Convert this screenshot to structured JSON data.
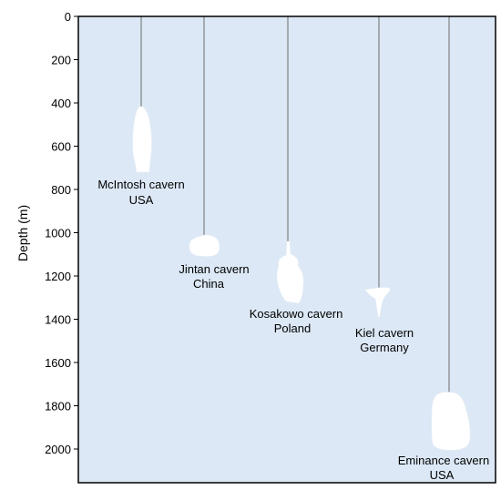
{
  "chart_data": {
    "type": "diagram",
    "ylabel": "Depth (m)",
    "ylim": [
      0,
      2150
    ],
    "y_inverted": true,
    "yticks": [
      0,
      200,
      400,
      600,
      800,
      1000,
      1200,
      1400,
      1600,
      1800,
      2000
    ],
    "background_color": "#dce8f5",
    "cavern_color": "#ffffff",
    "caverns": [
      {
        "name": "McIntosh cavern",
        "country": "USA",
        "top_depth": 410,
        "bottom_depth": 730
      },
      {
        "name": "Jintan cavern",
        "country": "China",
        "top_depth": 1010,
        "bottom_depth": 1120
      },
      {
        "name": "Kosakowo cavern",
        "country": "Poland",
        "top_depth": 1030,
        "bottom_depth": 1330
      },
      {
        "name": "Kiel cavern",
        "country": "Germany",
        "top_depth": 1270,
        "bottom_depth": 1400
      },
      {
        "name": "Eminance cavern",
        "country": "USA",
        "top_depth": 1730,
        "bottom_depth": 2010
      }
    ]
  }
}
